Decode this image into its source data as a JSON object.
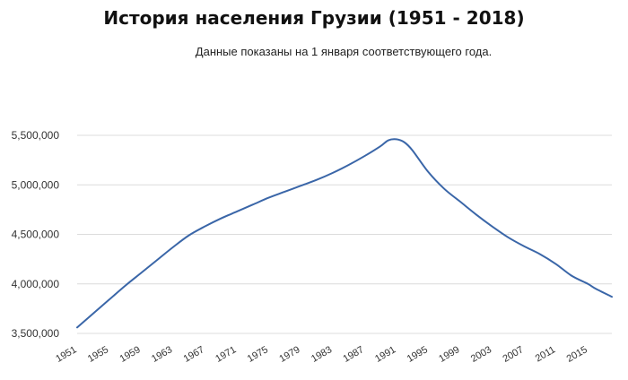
{
  "chart_data": {
    "type": "line",
    "title": "История населения Грузии (1951 - 2018)",
    "subtitle": "Данные показаны на 1 января соответствующего года.",
    "xlabel": "",
    "ylabel": "",
    "xlim": [
      1951,
      2018
    ],
    "ylim": [
      3500000,
      5500000
    ],
    "y_ticks": [
      3500000,
      4000000,
      4500000,
      5000000,
      5500000
    ],
    "y_tick_labels": [
      "3,500,000",
      "4,000,000",
      "4,500,000",
      "5,000,000",
      "5,500,000"
    ],
    "x_ticks": [
      1951,
      1955,
      1959,
      1963,
      1967,
      1971,
      1975,
      1979,
      1983,
      1987,
      1991,
      1995,
      1999,
      2003,
      2007,
      2011,
      2015
    ],
    "grid": "horizontal",
    "legend": "none",
    "line_color": "#3a66a8",
    "series": [
      {
        "x": [
          1951,
          1953,
          1955,
          1957,
          1959,
          1961,
          1963,
          1965,
          1967,
          1969,
          1971,
          1973,
          1975,
          1977,
          1979,
          1981,
          1983,
          1985,
          1987,
          1989,
          1990,
          1991,
          1992,
          1993,
          1995,
          1997,
          1999,
          2001,
          2003,
          2005,
          2007,
          2009,
          2011,
          2013,
          2015,
          2016,
          2018
        ],
        "y": [
          3560000,
          3700000,
          3840000,
          3980000,
          4110000,
          4240000,
          4370000,
          4490000,
          4580000,
          4660000,
          4730000,
          4800000,
          4870000,
          4930000,
          4990000,
          5050000,
          5120000,
          5200000,
          5290000,
          5390000,
          5450000,
          5460000,
          5430000,
          5350000,
          5130000,
          4960000,
          4830000,
          4700000,
          4580000,
          4470000,
          4380000,
          4300000,
          4200000,
          4080000,
          4000000,
          3950000,
          3870000
        ]
      }
    ]
  }
}
